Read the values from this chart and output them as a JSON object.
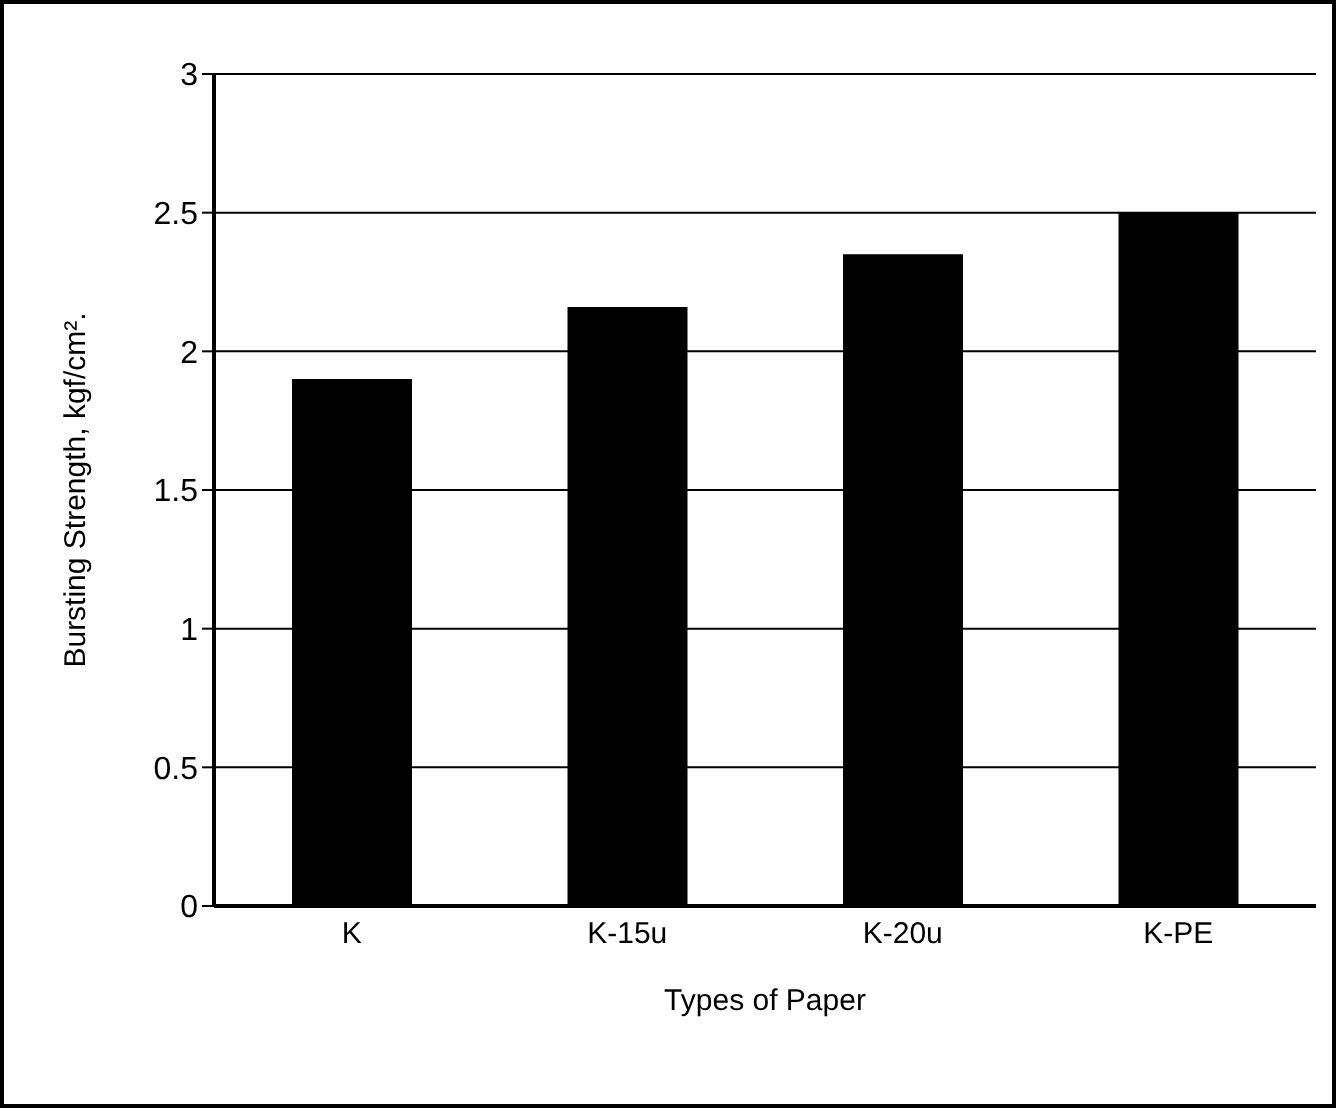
{
  "chart_data": {
    "type": "bar",
    "xlabel": "Types of Paper",
    "ylabel": "Bursting Strength, kgf/cm².",
    "categories": [
      "K",
      "K-15u",
      "K-20u",
      "K-PE"
    ],
    "values": [
      1.9,
      2.16,
      2.35,
      2.5
    ],
    "color": "#000000",
    "ylim": [
      0,
      3
    ],
    "yticks": [
      0,
      0.5,
      1,
      1.5,
      2,
      2.5,
      3
    ],
    "grid": "y"
  }
}
